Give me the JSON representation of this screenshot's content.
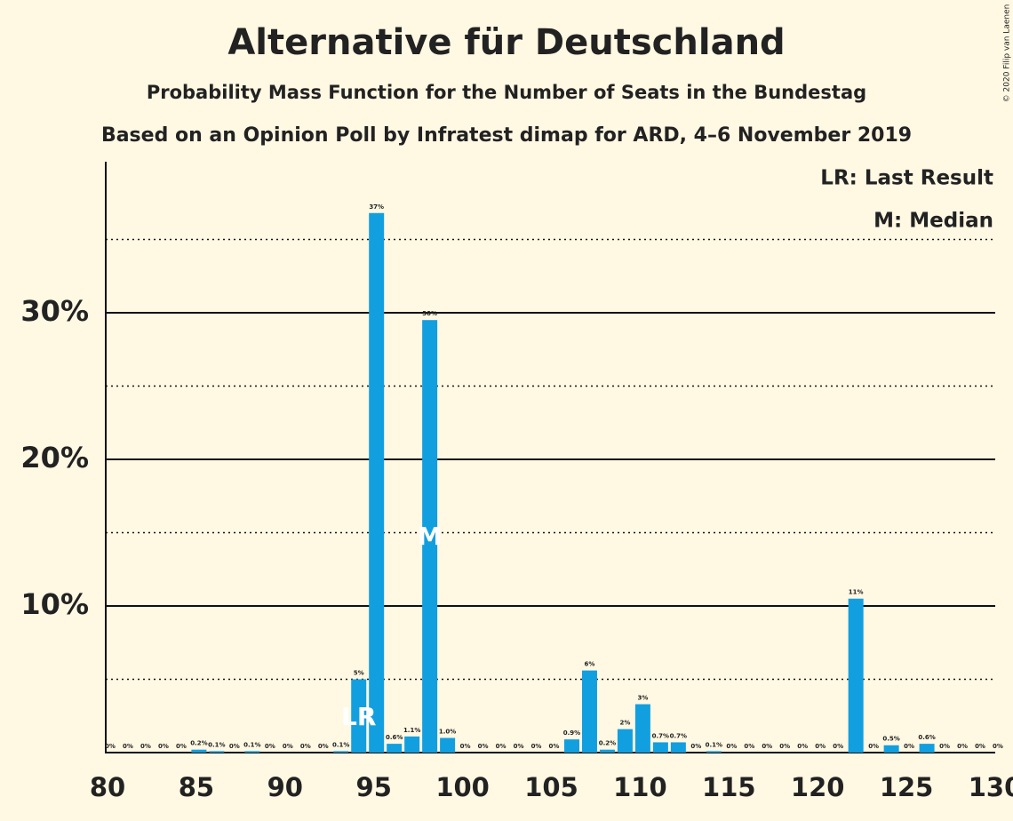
{
  "chart_data": {
    "type": "bar",
    "title": "Alternative für Deutschland",
    "subtitle": "Probability Mass Function for the Number of Seats in the Bundestag",
    "subtitle2": "Based on an Opinion Poll by Infratest dimap for ARD, 4–6 November 2019",
    "copyright": "© 2020 Filip van Laenen",
    "legend": [
      "LR: Last Result",
      "M: Median"
    ],
    "last_result": {
      "seat": 94,
      "label": "LR"
    },
    "median": {
      "seat": 98,
      "label": "M"
    },
    "color": "#129fe0",
    "x": [
      80,
      81,
      82,
      83,
      84,
      85,
      86,
      87,
      88,
      89,
      90,
      91,
      92,
      93,
      94,
      95,
      96,
      97,
      98,
      99,
      100,
      101,
      102,
      103,
      104,
      105,
      106,
      107,
      108,
      109,
      110,
      111,
      112,
      113,
      114,
      115,
      116,
      117,
      118,
      119,
      120,
      121,
      122,
      123,
      124,
      125,
      126,
      127,
      128,
      129,
      130
    ],
    "values": [
      0,
      0,
      0,
      0,
      0,
      0.2,
      0.1,
      0,
      0.1,
      0,
      0,
      0,
      0,
      0.1,
      5.0,
      36.8,
      0.6,
      1.1,
      29.5,
      1.0,
      0,
      0,
      0,
      0,
      0,
      0,
      0.9,
      5.6,
      0.2,
      1.6,
      3.3,
      0.7,
      0.7,
      0,
      0.1,
      0,
      0,
      0,
      0,
      0,
      0,
      0,
      10.5,
      0,
      0.5,
      0,
      0.6,
      0,
      0,
      0,
      0
    ],
    "value_labels": [
      "0%",
      "0%",
      "0%",
      "0%",
      "0%",
      "0.2%",
      "0.1%",
      "0%",
      "0.1%",
      "0%",
      "0%",
      "0%",
      "0%",
      "0.1%",
      "5%",
      "37%",
      "0.6%",
      "1.1%",
      "30%",
      "1.0%",
      "0%",
      "0%",
      "0%",
      "0%",
      "0%",
      "0%",
      "0.9%",
      "6%",
      "0.2%",
      "2%",
      "3%",
      "0.7%",
      "0.7%",
      "0%",
      "0.1%",
      "0%",
      "0%",
      "0%",
      "0%",
      "0%",
      "0%",
      "0%",
      "11%",
      "0%",
      "0.5%",
      "0%",
      "0.6%",
      "0%",
      "0%",
      "0%",
      "0%"
    ],
    "xlim": [
      80,
      130
    ],
    "xticks": [
      80,
      85,
      90,
      95,
      100,
      105,
      110,
      115,
      120,
      125,
      130
    ],
    "ylim": [
      0,
      40.3
    ],
    "yticks": [
      {
        "value": 10,
        "label": "10%"
      },
      {
        "value": 20,
        "label": "20%"
      },
      {
        "value": 30,
        "label": "30%"
      }
    ],
    "minor_yticks": [
      5,
      15,
      25,
      35
    ],
    "grid": true
  }
}
